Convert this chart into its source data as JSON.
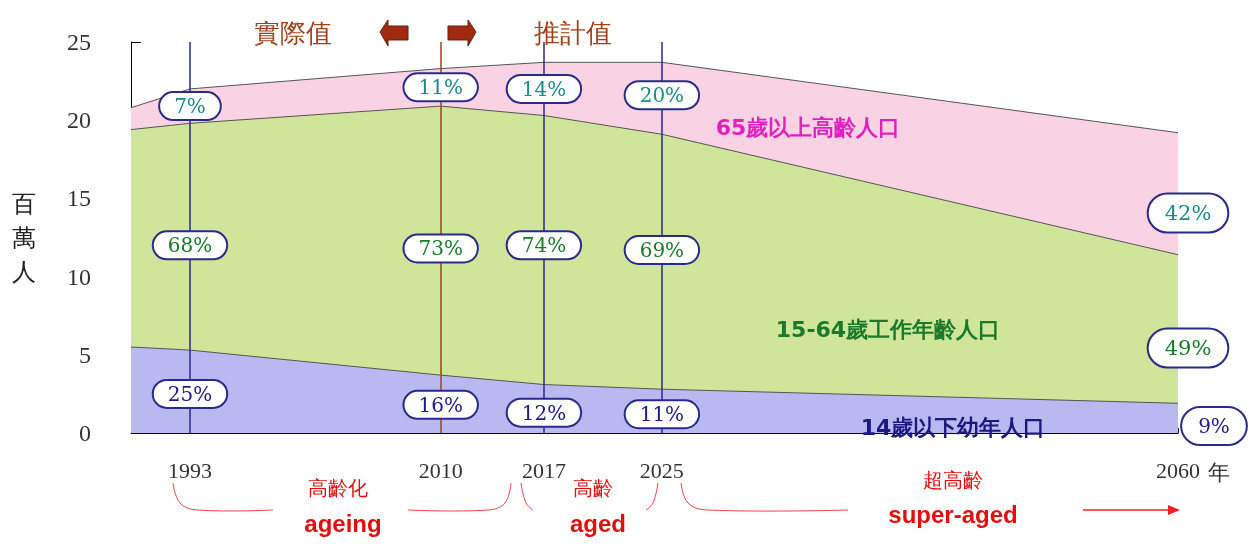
{
  "chart_data": {
    "type": "area",
    "stacked": true,
    "ylabel": "百萬人",
    "xlabel": "年",
    "x": [
      1989,
      1993,
      2010,
      2017,
      2025,
      2060
    ],
    "xlim": [
      1989,
      2060
    ],
    "xticks": [
      1993,
      2010,
      2017,
      2025,
      2060
    ],
    "ylim": [
      0,
      25
    ],
    "yticks": [
      0,
      5,
      10,
      15,
      20,
      25
    ],
    "grid": false,
    "legend": false,
    "series": [
      {
        "name": "14歲以下幼年人口",
        "color": "#b9b9f2",
        "values": [
          5.5,
          5.3,
          3.7,
          3.1,
          2.8,
          1.9
        ]
      },
      {
        "name": "15-64歲工作年齡人口",
        "color": "#cfe59a",
        "values": [
          13.9,
          14.5,
          17.2,
          17.2,
          16.3,
          9.5
        ]
      },
      {
        "name": "65歲以上高齡人口",
        "color": "#f9d3e3",
        "values": [
          1.4,
          2.2,
          2.4,
          3.4,
          4.6,
          7.8
        ]
      }
    ],
    "ref_lines": [
      {
        "axis": "x",
        "value": 1993,
        "color": "#2a2a8a"
      },
      {
        "axis": "x",
        "value": 2010,
        "color": "#a0401a"
      },
      {
        "axis": "x",
        "value": 2017,
        "color": "#2a2a8a"
      },
      {
        "axis": "x",
        "value": 2025,
        "color": "#2a2a8a"
      }
    ],
    "annotations": [
      "實際值",
      "推計值",
      "高齡化",
      "ageing",
      "高齡",
      "aged",
      "超高齡",
      "super-aged",
      "42%",
      "49%",
      "9%",
      {
        "text": "7%",
        "x": 1993,
        "y": 20.9
      },
      {
        "text": "68%",
        "x": 1993,
        "y": 12
      },
      {
        "text": "25%",
        "x": 1993,
        "y": 2.5
      },
      {
        "text": "11%",
        "x": 2010,
        "y": 22.1
      },
      {
        "text": "73%",
        "x": 2010,
        "y": 11.8
      },
      {
        "text": "16%",
        "x": 2010,
        "y": 1.8
      },
      {
        "text": "14%",
        "x": 2017,
        "y": 22
      },
      {
        "text": "74%",
        "x": 2017,
        "y": 12
      },
      {
        "text": "12%",
        "x": 2017,
        "y": 1.3
      },
      {
        "text": "20%",
        "x": 2025,
        "y": 21.6
      },
      {
        "text": "69%",
        "x": 2025,
        "y": 11.7
      },
      {
        "text": "11%",
        "x": 2025,
        "y": 1.2
      }
    ]
  }
}
